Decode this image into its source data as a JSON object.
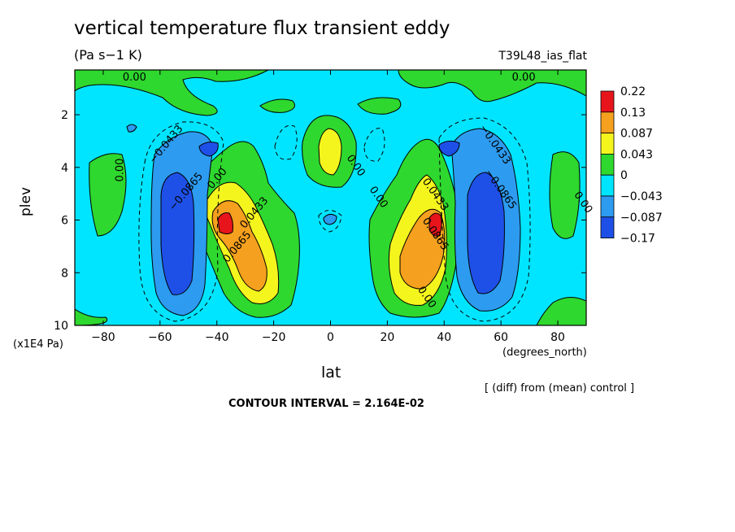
{
  "chart_data": {
    "type": "heatmap",
    "title": "vertical temperature flux transient eddy",
    "subtitle": "(Pa s−1 K)",
    "run_label": "T39L48_ias_flat",
    "xlabel": "lat",
    "xunit": "(degrees_north)",
    "ylabel": "plev",
    "yunit": "(x1E4 Pa)",
    "xlim": [
      -90,
      90
    ],
    "ylim": [
      10,
      0.3
    ],
    "xticks": [
      "−80",
      "−60",
      "−40",
      "−20",
      "0",
      "20",
      "40",
      "60",
      "80"
    ],
    "xtick_values": [
      -80,
      -60,
      -40,
      -20,
      0,
      20,
      40,
      60,
      80
    ],
    "yticks": [
      "2",
      "4",
      "6",
      "8",
      "10"
    ],
    "ytick_values": [
      2,
      4,
      6,
      8,
      10
    ],
    "note": "[ (diff) from (mean) control ]",
    "contour_interval": "CONTOUR INTERVAL = 2.164E-02",
    "colorbar": {
      "levels": [
        "0.22",
        "0.13",
        "0.087",
        "0.043",
        "0",
        "−0.043",
        "−0.087",
        "−0.17"
      ],
      "colors": [
        "#e8141c",
        "#f5a01e",
        "#f5f51e",
        "#2ed82e",
        "#00e5ff",
        "#2d9bf0",
        "#1e50e8"
      ]
    },
    "contour_labels": [
      {
        "text": "0.00",
        "lat": -69,
        "plev": 0.7
      },
      {
        "text": "0.00",
        "lat": 68,
        "plev": 0.7
      },
      {
        "text": "−0.0433",
        "lat": -57,
        "plev": 3.2
      },
      {
        "text": "−0.0433",
        "lat": 57,
        "plev": 3.2
      },
      {
        "text": "0.00",
        "lat": -73,
        "plev": 4.1
      },
      {
        "text": "0.00",
        "lat": 88,
        "plev": 5.4
      },
      {
        "text": "−0.0865",
        "lat": -50,
        "plev": 5.0
      },
      {
        "text": "−0.0865",
        "lat": 59,
        "plev": 4.9
      },
      {
        "text": "0.00",
        "lat": -39,
        "plev": 4.5
      },
      {
        "text": "0.0433",
        "lat": -26,
        "plev": 5.8
      },
      {
        "text": "0.0865",
        "lat": -32,
        "plev": 7.1
      },
      {
        "text": "0.00",
        "lat": 8,
        "plev": 4.0
      },
      {
        "text": "0.00",
        "lat": 16,
        "plev": 5.2
      },
      {
        "text": "0.0433",
        "lat": 36,
        "plev": 5.1
      },
      {
        "text": "0.0865",
        "lat": 36,
        "plev": 6.6
      },
      {
        "text": "0.00",
        "lat": 33,
        "plev": 9.0
      }
    ],
    "features": [
      {
        "kind": "max",
        "lat": -37,
        "plev": 6.0,
        "value_range": "0.13–0.22"
      },
      {
        "kind": "max",
        "lat": 36,
        "plev": 5.9,
        "value_range": "0.13–0.22"
      },
      {
        "kind": "min",
        "lat": -50,
        "plev": 6.0,
        "value_range": "−0.087 to −0.17"
      },
      {
        "kind": "min",
        "lat": 52,
        "plev": 6.0,
        "value_range": "−0.087 to −0.17"
      },
      {
        "kind": "max",
        "lat": 0,
        "plev": 3.5,
        "value_range": "0.043–0.087"
      }
    ]
  }
}
